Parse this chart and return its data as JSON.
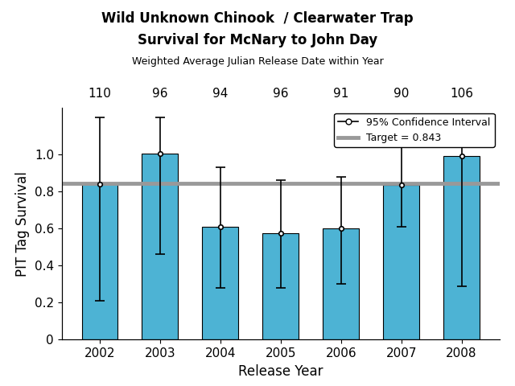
{
  "title_line1": "Wild Unknown Chinook  / Clearwater Trap",
  "title_line2": "Survival for McNary to John Day",
  "subtitle": "Weighted Average Julian Release Date within Year",
  "xlabel": "Release Year",
  "ylabel": "PIT Tag Survival",
  "years": [
    2002,
    2003,
    2004,
    2005,
    2006,
    2007,
    2008
  ],
  "values": [
    0.84,
    1.005,
    0.61,
    0.576,
    0.6,
    0.835,
    0.99
  ],
  "ci_lower": [
    0.21,
    0.46,
    0.28,
    0.28,
    0.3,
    0.61,
    0.29
  ],
  "ci_upper": [
    1.2,
    1.2,
    0.93,
    0.86,
    0.88,
    1.2,
    1.2
  ],
  "julian_dates": [
    "110",
    "96",
    "94",
    "96",
    "91",
    "90",
    "106"
  ],
  "target": 0.843,
  "bar_color": "#4db3d4",
  "bar_edge_color": "#000000",
  "target_color": "#999999",
  "errorbar_color": "#000000",
  "ylim": [
    0,
    1.25
  ],
  "yticks": [
    0,
    0.2,
    0.4,
    0.6,
    0.8,
    1.0
  ],
  "legend_label_ci": "95% Confidence Interval",
  "legend_label_target": "Target = 0.843"
}
